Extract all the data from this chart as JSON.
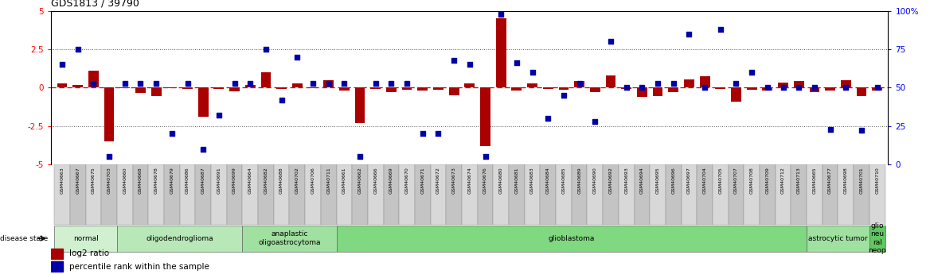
{
  "title": "GDS1813 / 39790",
  "samples": [
    "GSM40663",
    "GSM40667",
    "GSM40675",
    "GSM40703",
    "GSM40660",
    "GSM40668",
    "GSM40678",
    "GSM40679",
    "GSM40686",
    "GSM40687",
    "GSM40691",
    "GSM40699",
    "GSM40664",
    "GSM40682",
    "GSM40688",
    "GSM40702",
    "GSM40706",
    "GSM40711",
    "GSM40661",
    "GSM40662",
    "GSM40666",
    "GSM40669",
    "GSM40670",
    "GSM40671",
    "GSM40672",
    "GSM40673",
    "GSM40674",
    "GSM40676",
    "GSM40680",
    "GSM40681",
    "GSM40683",
    "GSM40684",
    "GSM40685",
    "GSM40689",
    "GSM40690",
    "GSM40692",
    "GSM40693",
    "GSM40694",
    "GSM40695",
    "GSM40696",
    "GSM40697",
    "GSM40704",
    "GSM40705",
    "GSM40707",
    "GSM40708",
    "GSM40709",
    "GSM40712",
    "GSM40713",
    "GSM40665",
    "GSM40677",
    "GSM40698",
    "GSM40701",
    "GSM40710"
  ],
  "log2_ratio": [
    0.3,
    0.2,
    1.1,
    -3.5,
    -0.05,
    -0.35,
    -0.55,
    -0.05,
    -0.1,
    -1.9,
    -0.1,
    -0.25,
    0.2,
    1.0,
    -0.1,
    0.3,
    -0.05,
    0.5,
    -0.2,
    -2.3,
    -0.1,
    -0.3,
    -0.15,
    -0.2,
    -0.15,
    -0.5,
    0.3,
    -3.8,
    4.5,
    -0.2,
    0.3,
    -0.1,
    -0.15,
    0.45,
    -0.3,
    0.8,
    -0.1,
    -0.6,
    -0.55,
    -0.3,
    0.55,
    0.75,
    -0.1,
    -0.9,
    -0.15,
    -0.2,
    0.35,
    0.45,
    -0.3,
    -0.2,
    0.5,
    -0.55,
    -0.2
  ],
  "percentile": [
    65,
    75,
    53,
    5,
    53,
    53,
    53,
    20,
    53,
    10,
    32,
    53,
    53,
    75,
    42,
    70,
    53,
    53,
    53,
    5,
    53,
    53,
    53,
    20,
    20,
    68,
    65,
    5,
    98,
    66,
    60,
    30,
    45,
    53,
    28,
    80,
    50,
    50,
    53,
    53,
    85,
    50,
    88,
    53,
    60,
    50,
    50,
    50,
    50,
    23,
    50,
    22,
    50
  ],
  "disease_groups": [
    {
      "label": "normal",
      "start": 0,
      "end": 4,
      "color": "#d0f0d0"
    },
    {
      "label": "oligodendroglioma",
      "start": 4,
      "end": 12,
      "color": "#b8e8b8"
    },
    {
      "label": "anaplastic\noligoastrocytoma",
      "start": 12,
      "end": 18,
      "color": "#a0e0a0"
    },
    {
      "label": "glioblastoma",
      "start": 18,
      "end": 48,
      "color": "#80d880"
    },
    {
      "label": "astrocytic tumor",
      "start": 48,
      "end": 52,
      "color": "#a0e0a0"
    },
    {
      "label": "glio\nneu\nral\nneop",
      "start": 52,
      "end": 53,
      "color": "#60c860"
    }
  ],
  "ylim_left": [
    -5,
    5
  ],
  "ylim_right": [
    0,
    100
  ],
  "yticks_left": [
    -5,
    -2.5,
    0,
    2.5,
    5
  ],
  "yticks_right": [
    0,
    25,
    50,
    75,
    100
  ],
  "bar_color": "#aa0000",
  "scatter_color": "#0000aa",
  "zero_line_color": "#cc0000",
  "dotted_line_color": "#555555"
}
